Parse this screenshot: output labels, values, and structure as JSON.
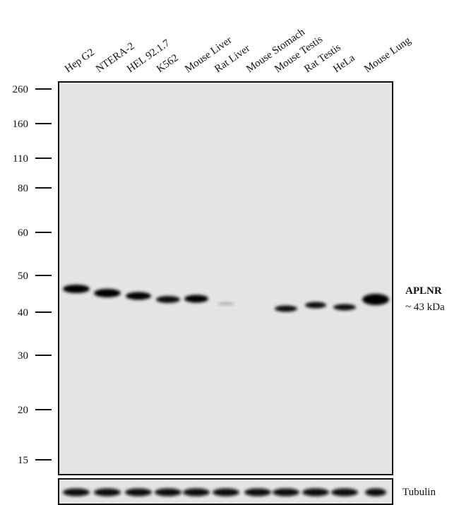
{
  "lanes": [
    "Hep G2",
    "NTERA-2",
    "HEL 92.1.7",
    "K562",
    "Mouse Liver",
    "Rat Liver",
    "Mouse Stomach",
    "Mouse Testis",
    "Rat Testis",
    "HeLa",
    "Mouse Lung"
  ],
  "markers": [
    "260",
    "160",
    "110",
    "80",
    "60",
    "50",
    "40",
    "30",
    "20",
    "15"
  ],
  "target": {
    "name": "APLNR",
    "size": "~ 43 kDa"
  },
  "loading_control": "Tubulin"
}
